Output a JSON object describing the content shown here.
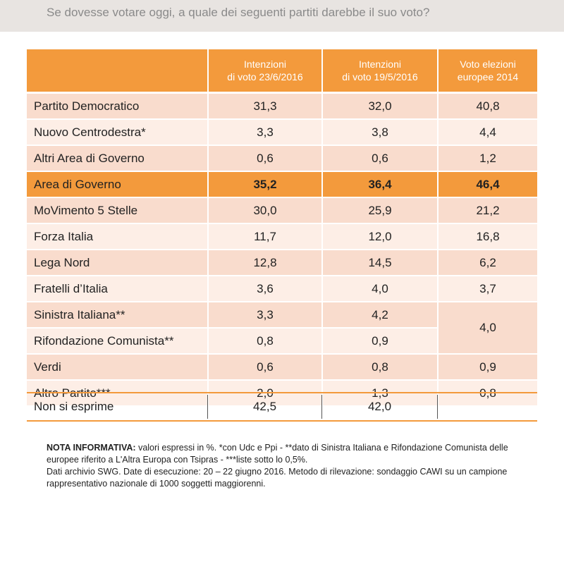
{
  "question": "Se dovesse votare oggi, a quale dei seguenti partiti darebbe il suo voto?",
  "headers": {
    "col1": [
      "Intenzioni",
      "di voto 23/6/2016"
    ],
    "col2": [
      "Intenzioni",
      "di voto 19/5/2016"
    ],
    "col3": [
      "Voto elezioni",
      "europee 2014"
    ]
  },
  "rows": [
    {
      "party": "Partito Democratico",
      "v1": "31,3",
      "v2": "32,0",
      "v3": "40,8"
    },
    {
      "party": "Nuovo Centrodestra*",
      "v1": "3,3",
      "v2": "3,8",
      "v3": "4,4"
    },
    {
      "party": "Altri Area di Governo",
      "v1": "0,6",
      "v2": "0,6",
      "v3": "1,2"
    },
    {
      "party": "Area di Governo",
      "v1": "35,2",
      "v2": "36,4",
      "v3": "46,4"
    },
    {
      "party": "MoVimento 5 Stelle",
      "v1": "30,0",
      "v2": "25,9",
      "v3": "21,2"
    },
    {
      "party": "Forza Italia",
      "v1": "11,7",
      "v2": "12,0",
      "v3": "16,8"
    },
    {
      "party": "Lega Nord",
      "v1": "12,8",
      "v2": "14,5",
      "v3": "6,2"
    },
    {
      "party": "Fratelli d’Italia",
      "v1": "3,6",
      "v2": "4,0",
      "v3": "3,7"
    },
    {
      "party": "Sinistra Italiana**",
      "v1": "3,3",
      "v2": "4,2",
      "v3": "4,0"
    },
    {
      "party": "Rifondazione Comunista**",
      "v1": "0,8",
      "v2": "0,9"
    },
    {
      "party": "Verdi",
      "v1": "0,6",
      "v2": "0,8",
      "v3": "0,9"
    },
    {
      "party": "Altro Partito***",
      "v1": "2,0",
      "v2": "1,3",
      "v3": "0,8"
    }
  ],
  "non_si_esprime": {
    "label": "Non si esprime",
    "v1": "42,5",
    "v2": "42,0",
    "v3": ""
  },
  "note": {
    "bold": "NOTA INFORMATIVA:",
    "line1": " valori espressi in %. *con Udc e Ppi - **dato di Sinistra Italiana e Rifondazione Comunista delle europee riferito a L'Altra Europa con Tsipras - ***liste sotto lo 0,5%.",
    "line2": "Dati archivio SWG. Date di esecuzione: 20 – 22 giugno 2016. Metodo di rilevazione: sondaggio CAWI su un campione rappresentativo nazionale di 1000 soggetti maggiorenni."
  },
  "colors": {
    "orange": "#f39a3c",
    "row_dark": "#f9dccd",
    "row_light": "#fdeee6"
  }
}
